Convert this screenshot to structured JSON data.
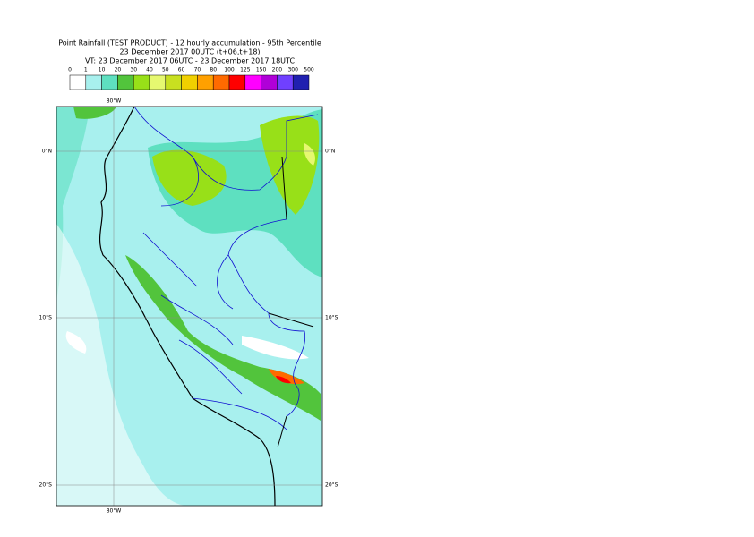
{
  "header": {
    "lines": [
      "Point Rainfall (TEST PRODUCT) - 12 hourly accumulation - 95th Percentile",
      "23 December 2017 00UTC (t+06,t+18)",
      "VT: 23 December 2017 06UTC - 23 December 2017 18UTC"
    ]
  },
  "legend": {
    "ticks": [
      "0",
      "1",
      "10",
      "20",
      "30",
      "40",
      "50",
      "60",
      "70",
      "80",
      "100",
      "125",
      "150",
      "200",
      "300",
      "500"
    ],
    "colors": [
      "#ffffff",
      "#a8f0ee",
      "#5ee0c0",
      "#52c43c",
      "#98e018",
      "#e6f870",
      "#c8e020",
      "#f0d000",
      "#ffa000",
      "#ff6a00",
      "#ff0000",
      "#ff00ff",
      "#b000d8",
      "#7040ff",
      "#2020b0",
      "#101050"
    ]
  },
  "map": {
    "lon_label": "80°W",
    "lat_labels": [
      "0°N",
      "10°S",
      "20°S"
    ]
  }
}
